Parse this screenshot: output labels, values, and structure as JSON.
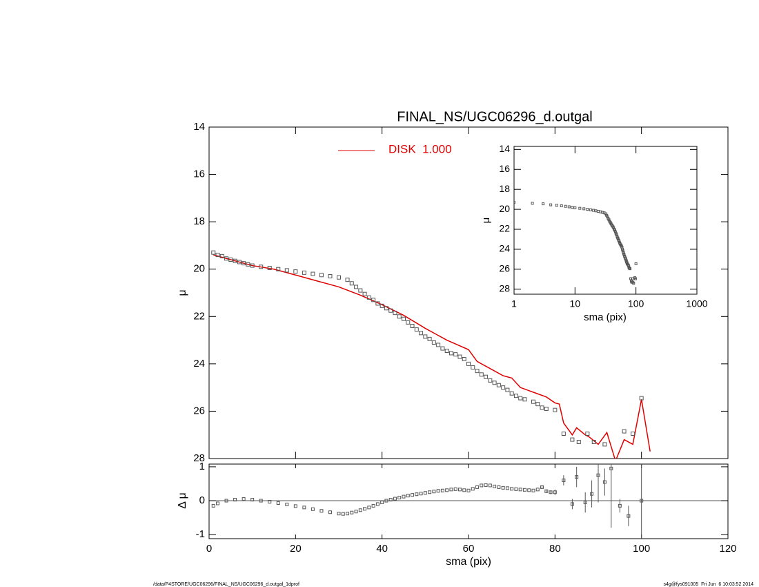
{
  "footer_left": "/data/P4STORE/UGC06296/FINAL_NS/UGC06296_d.outgal_1dprof",
  "footer_right": "s4g@fys091005  Fri Jun  6 10:03:52 2014",
  "chart_data": [
    {
      "type": "line",
      "title": "FINAL_NS/UGC06296_d.outgal",
      "ylabel": "μ",
      "xlim": [
        0,
        120
      ],
      "xticks": [
        0,
        20,
        40,
        60,
        80,
        100,
        120
      ],
      "ylim": [
        28,
        14
      ],
      "yticks": [
        14,
        16,
        18,
        20,
        22,
        24,
        26,
        28
      ],
      "series": [
        {
          "name": "DISK  1.000",
          "color": "#e00000",
          "style": "line",
          "x": [
            1,
            5,
            10,
            15,
            20,
            25,
            30,
            35,
            40,
            45,
            50,
            55,
            60,
            62,
            65,
            68,
            70,
            72,
            75,
            78,
            80,
            81,
            82,
            84,
            85,
            87,
            88,
            90,
            92,
            94,
            96,
            98,
            100,
            102
          ],
          "values": [
            19.4,
            19.6,
            19.85,
            20.0,
            20.25,
            20.5,
            20.75,
            21.1,
            21.5,
            21.95,
            22.5,
            23.0,
            23.4,
            23.9,
            24.2,
            24.5,
            24.6,
            25.0,
            25.2,
            25.4,
            25.65,
            25.7,
            26.5,
            27.0,
            26.7,
            27.0,
            27.1,
            27.4,
            26.9,
            28.1,
            27.2,
            27.4,
            25.5,
            27.7
          ]
        },
        {
          "color": "#555555",
          "style": "points",
          "x": [
            1,
            2,
            3,
            4,
            5,
            6,
            7,
            8,
            9,
            10,
            12,
            14,
            16,
            18,
            20,
            22,
            24,
            26,
            28,
            30,
            32,
            33,
            34,
            35,
            36,
            37,
            38,
            39,
            40,
            41,
            42,
            43,
            44,
            45,
            46,
            47,
            48,
            49,
            50,
            51,
            52,
            53,
            54,
            55,
            56,
            57,
            58,
            59,
            60,
            61,
            62,
            63,
            64,
            65,
            66,
            67,
            68,
            69,
            70,
            71,
            72,
            73,
            75,
            76,
            77,
            78,
            80,
            82,
            84,
            85.5,
            87.5,
            89,
            91.5,
            96,
            98,
            100
          ],
          "values": [
            19.3,
            19.4,
            19.45,
            19.55,
            19.6,
            19.65,
            19.7,
            19.75,
            19.8,
            19.85,
            19.9,
            19.95,
            20.0,
            20.05,
            20.1,
            20.15,
            20.2,
            20.25,
            20.3,
            20.35,
            20.45,
            20.6,
            20.75,
            20.9,
            21.05,
            21.2,
            21.3,
            21.45,
            21.55,
            21.65,
            21.75,
            21.85,
            22.0,
            22.1,
            22.25,
            22.4,
            22.55,
            22.7,
            22.85,
            22.95,
            23.1,
            23.2,
            23.35,
            23.45,
            23.55,
            23.6,
            23.7,
            23.8,
            24.0,
            24.15,
            24.3,
            24.45,
            24.55,
            24.7,
            24.8,
            24.9,
            25.0,
            25.1,
            25.25,
            25.35,
            25.45,
            25.5,
            25.6,
            25.7,
            25.85,
            25.9,
            25.95,
            26.95,
            27.2,
            27.3,
            26.95,
            27.3,
            27.4,
            26.85,
            26.95,
            25.45
          ]
        }
      ]
    },
    {
      "type": "scatter",
      "ylabel": "Δ μ",
      "xlabel": "sma (pix)",
      "xlim": [
        0,
        120
      ],
      "xticks": [
        0,
        20,
        40,
        60,
        80,
        100,
        120
      ],
      "ylim": [
        -1.12,
        1.08
      ],
      "yticks": [
        -1,
        0,
        1
      ],
      "color": "#555555",
      "x": [
        1,
        2,
        4,
        6,
        8,
        10,
        12,
        14,
        16,
        18,
        20,
        22,
        24,
        26,
        28,
        30,
        31,
        32,
        33,
        34,
        35,
        36,
        37,
        38,
        39,
        40,
        41,
        42,
        43,
        44,
        45,
        46,
        47,
        48,
        49,
        50,
        51,
        52,
        53,
        54,
        55,
        56,
        57,
        58,
        59,
        60,
        61,
        62,
        63,
        64,
        65,
        66,
        67,
        68,
        69,
        70,
        71,
        72,
        73,
        74,
        75,
        76,
        77,
        78,
        79,
        80,
        82,
        84,
        85,
        87,
        88.5,
        90,
        91.5,
        93,
        95,
        97,
        100
      ],
      "values": [
        -0.15,
        -0.08,
        0.0,
        0.03,
        0.05,
        0.03,
        0.0,
        -0.03,
        -0.07,
        -0.11,
        -0.16,
        -0.2,
        -0.25,
        -0.3,
        -0.34,
        -0.38,
        -0.39,
        -0.38,
        -0.35,
        -0.32,
        -0.28,
        -0.24,
        -0.2,
        -0.15,
        -0.1,
        -0.05,
        0.0,
        0.03,
        0.06,
        0.09,
        0.12,
        0.15,
        0.17,
        0.19,
        0.21,
        0.23,
        0.25,
        0.27,
        0.29,
        0.3,
        0.31,
        0.33,
        0.34,
        0.33,
        0.31,
        0.3,
        0.35,
        0.4,
        0.45,
        0.46,
        0.45,
        0.42,
        0.4,
        0.38,
        0.37,
        0.35,
        0.34,
        0.33,
        0.32,
        0.31,
        0.3,
        0.33,
        0.4,
        0.28,
        0.25,
        0.25,
        0.6,
        -0.1,
        0.7,
        -0.05,
        0.2,
        0.75,
        0.55,
        0.95,
        -0.15,
        -0.45,
        0.0
      ],
      "errors": [
        null,
        null,
        null,
        null,
        null,
        null,
        null,
        null,
        null,
        null,
        null,
        null,
        null,
        null,
        null,
        null,
        null,
        null,
        null,
        null,
        null,
        null,
        null,
        null,
        null,
        null,
        null,
        null,
        null,
        null,
        null,
        null,
        null,
        null,
        null,
        null,
        null,
        null,
        null,
        null,
        null,
        null,
        null,
        null,
        null,
        null,
        null,
        null,
        null,
        null,
        null,
        null,
        null,
        null,
        null,
        null,
        null,
        null,
        null,
        null,
        null,
        null,
        0.05,
        0.05,
        0.05,
        0.08,
        0.15,
        0.15,
        0.3,
        0.3,
        0.4,
        0.8,
        0.4,
        1.75,
        0.2,
        0.3,
        2.5
      ]
    },
    {
      "type": "log-inset",
      "ylabel": "μ",
      "xlabel": "sma (pix)",
      "xlog": true,
      "xlim": [
        1,
        1000
      ],
      "xticks": [
        1,
        10,
        100,
        1000
      ],
      "ylim": [
        28.5,
        13.7
      ],
      "yticks": [
        14,
        16,
        18,
        20,
        22,
        24,
        26,
        28
      ]
    }
  ]
}
